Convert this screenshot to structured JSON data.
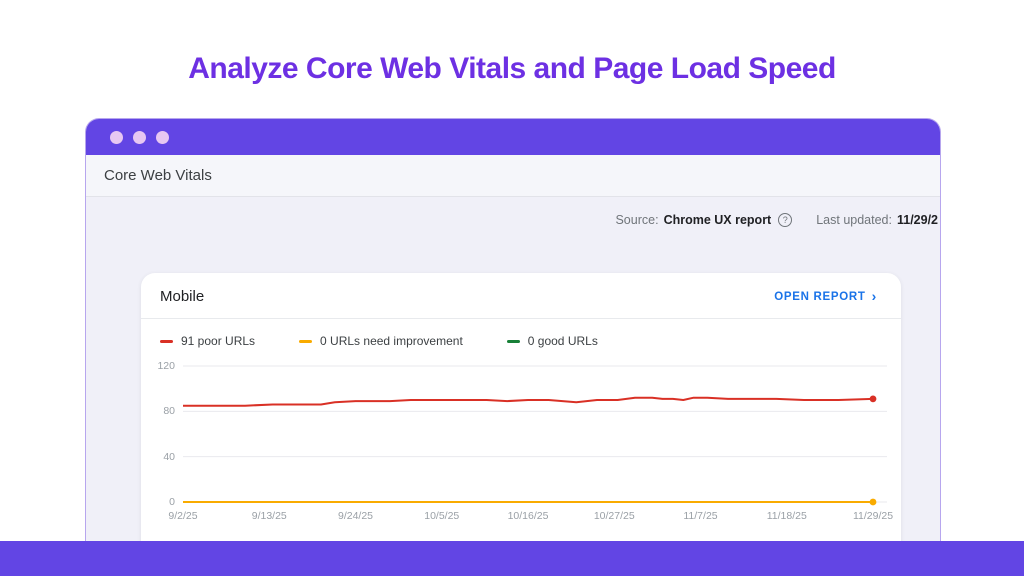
{
  "page": {
    "title": "Analyze Core Web Vitals and Page Load Speed"
  },
  "window": {
    "crumb": "Core Web Vitals",
    "source_label": "Source:",
    "source_value": "Chrome UX report",
    "help_icon_glyph": "?",
    "updated_label": "Last updated:",
    "updated_value": "11/29/2"
  },
  "card": {
    "title": "Mobile",
    "open_report_label": "OPEN REPORT",
    "open_report_chevron": "›"
  },
  "legend": [
    {
      "label": "91 poor URLs",
      "color": "#d93025"
    },
    {
      "label": "0 URLs need improvement",
      "color": "#f9ab00"
    },
    {
      "label": "0 good URLs",
      "color": "#188038"
    }
  ],
  "chart_data": {
    "type": "line",
    "title": "Mobile Core Web Vitals URL counts over time",
    "x_labels": [
      "9/2/25",
      "9/13/25",
      "9/24/25",
      "10/5/25",
      "10/16/25",
      "10/27/25",
      "11/7/25",
      "11/18/25",
      "11/29/25"
    ],
    "y_ticks": [
      0,
      40,
      80,
      120
    ],
    "ylim": [
      0,
      120
    ],
    "grid": true,
    "legend_position": "top",
    "series": [
      {
        "name": "poor URLs",
        "color": "#d93025",
        "end_dot": true,
        "latest_value": 91,
        "points": [
          [
            0,
            85
          ],
          [
            0.05,
            85
          ],
          [
            0.09,
            85
          ],
          [
            0.13,
            86
          ],
          [
            0.17,
            86
          ],
          [
            0.2,
            86
          ],
          [
            0.22,
            88
          ],
          [
            0.25,
            89
          ],
          [
            0.3,
            89
          ],
          [
            0.33,
            90
          ],
          [
            0.36,
            90
          ],
          [
            0.4,
            90
          ],
          [
            0.44,
            90
          ],
          [
            0.47,
            89
          ],
          [
            0.5,
            90
          ],
          [
            0.53,
            90
          ],
          [
            0.55,
            89
          ],
          [
            0.57,
            88
          ],
          [
            0.6,
            90
          ],
          [
            0.63,
            90
          ],
          [
            0.655,
            92
          ],
          [
            0.68,
            92
          ],
          [
            0.695,
            91
          ],
          [
            0.71,
            91
          ],
          [
            0.725,
            90
          ],
          [
            0.74,
            92
          ],
          [
            0.76,
            92
          ],
          [
            0.79,
            91
          ],
          [
            0.82,
            91
          ],
          [
            0.86,
            91
          ],
          [
            0.9,
            90
          ],
          [
            0.95,
            90
          ],
          [
            1,
            91
          ]
        ]
      },
      {
        "name": "URLs need improvement",
        "color": "#f9ab00",
        "end_dot": true,
        "latest_value": 0,
        "points": [
          [
            0,
            0
          ],
          [
            1,
            0
          ]
        ]
      },
      {
        "name": "good URLs",
        "color": "#188038",
        "end_dot": false,
        "latest_value": 0,
        "points": [
          [
            0,
            0
          ],
          [
            1,
            0
          ]
        ]
      }
    ]
  },
  "colors": {
    "accent_purple": "#6245e4",
    "title_purple": "#6d30e3",
    "window_border": "#b7a6ee",
    "titlebar_dots": "#e7c7f2",
    "link_blue": "#1a73e8",
    "grid_line": "#e9eaee"
  }
}
